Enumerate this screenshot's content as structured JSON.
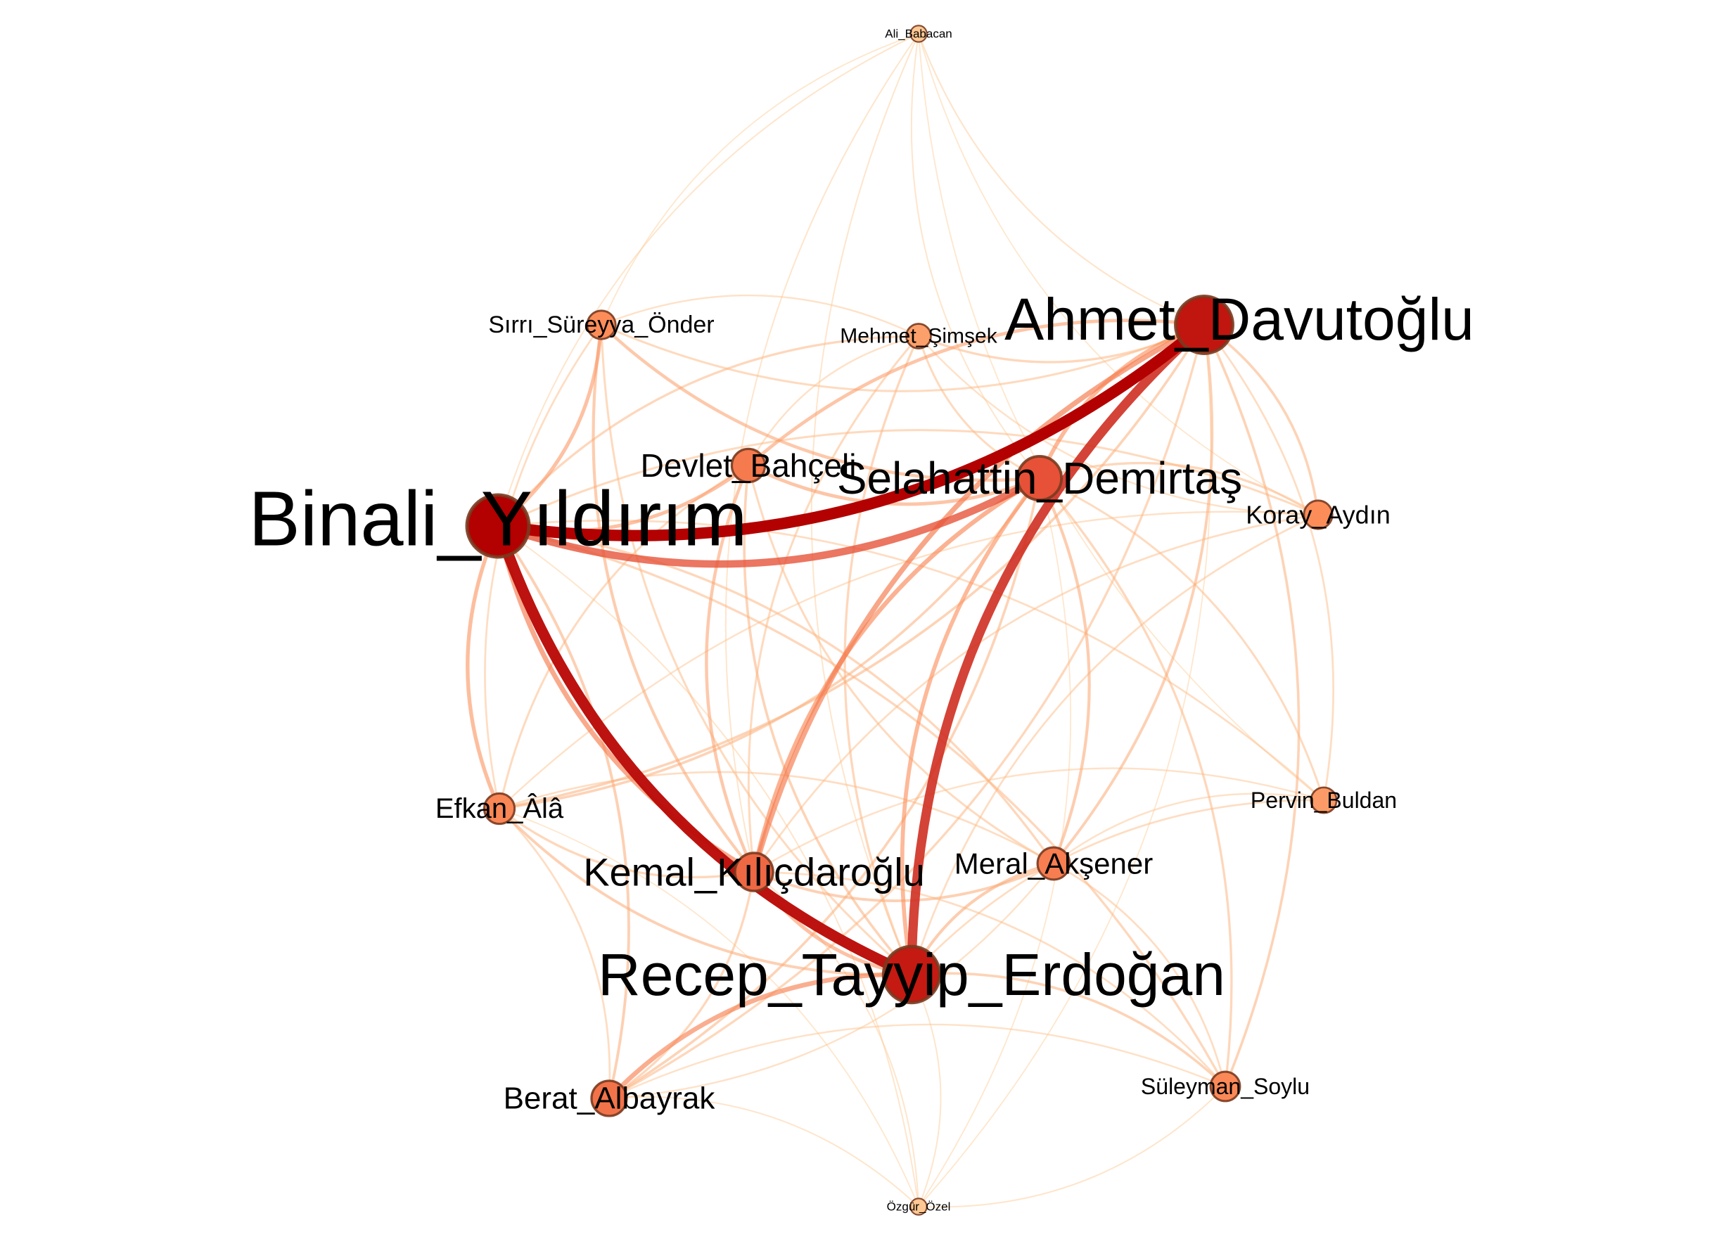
{
  "graph": {
    "nodes": [
      {
        "id": "ali",
        "label": "Ali_Babacan",
        "weight": 0.05
      },
      {
        "id": "sirri",
        "label": "Sırrı_Süreyya_Önder",
        "weight": 0.3
      },
      {
        "id": "mehmet",
        "label": "Mehmet_Şimşek",
        "weight": 0.22
      },
      {
        "id": "ahmet",
        "label": "Ahmet_Davutoğlu",
        "weight": 0.9
      },
      {
        "id": "devlet",
        "label": "Devlet_Bahçeli",
        "weight": 0.4
      },
      {
        "id": "selahattin",
        "label": "Selahattin_Demirtaş",
        "weight": 0.62
      },
      {
        "id": "binali",
        "label": "Binali_Yıldırım",
        "weight": 1.0
      },
      {
        "id": "koray",
        "label": "Koray_Aydın",
        "weight": 0.3
      },
      {
        "id": "efkan",
        "label": "Efkan_Âlâ",
        "weight": 0.34
      },
      {
        "id": "pervin",
        "label": "Pervin_Buldan",
        "weight": 0.24
      },
      {
        "id": "kemal",
        "label": "Kemal_Kılıçdaroğlu",
        "weight": 0.5
      },
      {
        "id": "meral",
        "label": "Meral_Akşener",
        "weight": 0.38
      },
      {
        "id": "recep",
        "label": "Recep_Tayyip_Erdoğan",
        "weight": 0.88
      },
      {
        "id": "berat",
        "label": "Berat_Albayrak",
        "weight": 0.44
      },
      {
        "id": "suleyman",
        "label": "Süleyman_Soylu",
        "weight": 0.32
      },
      {
        "id": "ozgur",
        "label": "Özgür_Özel",
        "weight": 0.05
      }
    ],
    "edges": [
      [
        "binali",
        "ahmet",
        1.0
      ],
      [
        "binali",
        "recep",
        0.95
      ],
      [
        "ahmet",
        "recep",
        0.8
      ],
      [
        "binali",
        "selahattin",
        0.62
      ],
      [
        "ahmet",
        "kemal",
        0.4
      ],
      [
        "binali",
        "kemal",
        0.38
      ],
      [
        "recep",
        "berat",
        0.36
      ],
      [
        "selahattin",
        "kemal",
        0.34
      ],
      [
        "selahattin",
        "recep",
        0.3
      ],
      [
        "binali",
        "efkan",
        0.28
      ],
      [
        "binali",
        "sirri",
        0.26
      ],
      [
        "binali",
        "devlet",
        0.26
      ],
      [
        "ahmet",
        "devlet",
        0.24
      ],
      [
        "ahmet",
        "selahattin",
        0.3
      ],
      [
        "sirri",
        "selahattin",
        0.22
      ],
      [
        "sirri",
        "kemal",
        0.2
      ],
      [
        "devlet",
        "kemal",
        0.22
      ],
      [
        "devlet",
        "selahattin",
        0.24
      ],
      [
        "kemal",
        "recep",
        0.26
      ],
      [
        "kemal",
        "meral",
        0.18
      ],
      [
        "meral",
        "recep",
        0.2
      ],
      [
        "meral",
        "selahattin",
        0.2
      ],
      [
        "meral",
        "ahmet",
        0.18
      ],
      [
        "koray",
        "ahmet",
        0.16
      ],
      [
        "koray",
        "selahattin",
        0.14
      ],
      [
        "koray",
        "binali",
        0.12
      ],
      [
        "efkan",
        "ahmet",
        0.16
      ],
      [
        "efkan",
        "selahattin",
        0.16
      ],
      [
        "efkan",
        "recep",
        0.18
      ],
      [
        "efkan",
        "kemal",
        0.14
      ],
      [
        "berat",
        "binali",
        0.18
      ],
      [
        "berat",
        "selahattin",
        0.16
      ],
      [
        "berat",
        "ahmet",
        0.14
      ],
      [
        "berat",
        "kemal",
        0.14
      ],
      [
        "suleyman",
        "recep",
        0.16
      ],
      [
        "suleyman",
        "binali",
        0.14
      ],
      [
        "suleyman",
        "ahmet",
        0.16
      ],
      [
        "suleyman",
        "selahattin",
        0.14
      ],
      [
        "pervin",
        "selahattin",
        0.12
      ],
      [
        "pervin",
        "ahmet",
        0.1
      ],
      [
        "pervin",
        "binali",
        0.1
      ],
      [
        "pervin",
        "recep",
        0.1
      ],
      [
        "mehmet",
        "binali",
        0.14
      ],
      [
        "mehmet",
        "ahmet",
        0.14
      ],
      [
        "mehmet",
        "recep",
        0.14
      ],
      [
        "mehmet",
        "selahattin",
        0.12
      ],
      [
        "mehmet",
        "kemal",
        0.12
      ],
      [
        "devlet",
        "recep",
        0.16
      ],
      [
        "devlet",
        "efkan",
        0.12
      ],
      [
        "devlet",
        "meral",
        0.12
      ],
      [
        "sirri",
        "ahmet",
        0.12
      ],
      [
        "sirri",
        "recep",
        0.12
      ],
      [
        "sirri",
        "efkan",
        0.1
      ],
      [
        "meral",
        "binali",
        0.14
      ],
      [
        "meral",
        "efkan",
        0.1
      ],
      [
        "koray",
        "recep",
        0.1
      ],
      [
        "koray",
        "kemal",
        0.1
      ],
      [
        "koray",
        "efkan",
        0.08
      ],
      [
        "suleyman",
        "kemal",
        0.1
      ],
      [
        "suleyman",
        "berat",
        0.08
      ],
      [
        "suleyman",
        "meral",
        0.1
      ],
      [
        "pervin",
        "kemal",
        0.08
      ],
      [
        "pervin",
        "meral",
        0.08
      ],
      [
        "berat",
        "efkan",
        0.1
      ],
      [
        "berat",
        "meral",
        0.08
      ],
      [
        "ali",
        "ahmet",
        0.06
      ],
      [
        "ali",
        "binali",
        0.05
      ],
      [
        "ali",
        "recep",
        0.05
      ],
      [
        "ali",
        "selahattin",
        0.05
      ],
      [
        "ali",
        "kemal",
        0.05
      ],
      [
        "ali",
        "sirri",
        0.04
      ],
      [
        "ali",
        "koray",
        0.04
      ],
      [
        "ali",
        "pervin",
        0.04
      ],
      [
        "ozgur",
        "recep",
        0.05
      ],
      [
        "ozgur",
        "binali",
        0.05
      ],
      [
        "ozgur",
        "kemal",
        0.05
      ],
      [
        "ozgur",
        "berat",
        0.05
      ],
      [
        "ozgur",
        "suleyman",
        0.05
      ],
      [
        "ozgur",
        "ahmet",
        0.04
      ],
      [
        "ozgur",
        "selahattin",
        0.04
      ],
      [
        "ozgur",
        "efkan",
        0.04
      ],
      [
        "mehmet",
        "devlet",
        0.08
      ],
      [
        "mehmet",
        "sirri",
        0.08
      ],
      [
        "mehmet",
        "koray",
        0.08
      ]
    ]
  },
  "colors": {
    "strong": "#b30000",
    "medium": "#e34a33",
    "light": "#fc8d59",
    "faint": "#fdd49e",
    "node_stroke": "#7a3a1f"
  }
}
